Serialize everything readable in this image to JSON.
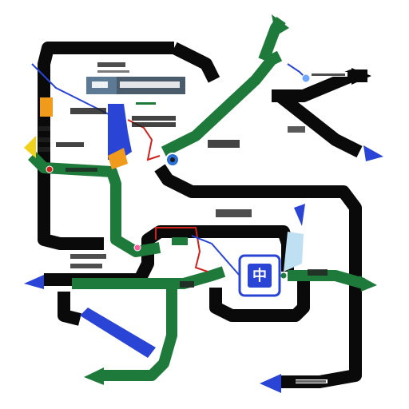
{
  "diagram": {
    "central_marker": {
      "glyph": "中"
    },
    "labels": [
      {
        "id": "label-top-center",
        "text": ""
      },
      {
        "id": "label-top-right",
        "text": ""
      },
      {
        "id": "label-mid-right",
        "text": ""
      },
      {
        "id": "label-center",
        "text": ""
      },
      {
        "id": "label-left-upper",
        "text": ""
      },
      {
        "id": "label-left-lower",
        "text": ""
      },
      {
        "id": "label-bottom-right",
        "text": ""
      }
    ],
    "colors": {
      "black_line": "#0a0a0a",
      "green_line": "#1e7a3a",
      "blue_accent": "#2a45d6",
      "red_line": "#d0211c",
      "grey_panel": "#4a5b6c",
      "light_blue": "#bfe0f2",
      "orange": "#f09b1c",
      "yellow": "#f0d21c"
    }
  }
}
